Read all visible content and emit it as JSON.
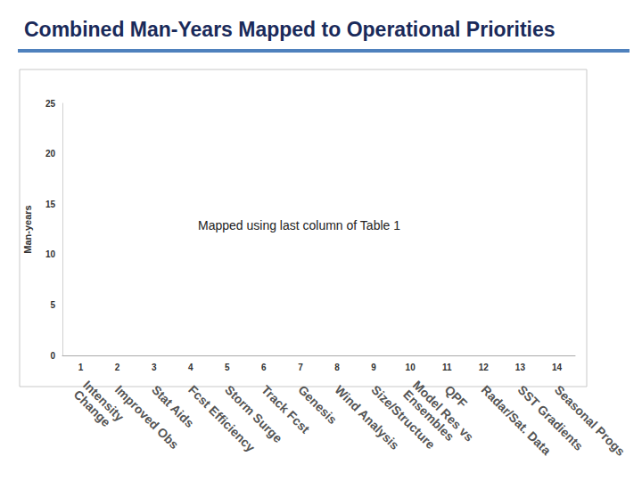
{
  "chart_data": {
    "type": "bar",
    "title": "Combined Man-Years Mapped to Operational Priorities",
    "ylabel": "Man-years",
    "categories": [
      "1",
      "2",
      "3",
      "4",
      "5",
      "6",
      "7",
      "8",
      "9",
      "10",
      "11",
      "12",
      "13",
      "14"
    ],
    "values": [
      null,
      null,
      null,
      null,
      null,
      null,
      null,
      null,
      null,
      null,
      null,
      null,
      null,
      null
    ],
    "priority_labels": [
      "Intensity\nChange",
      "Improved Obs",
      "Stat Aids",
      "Fcst Efficiency",
      "Storm Surge",
      "Track Fcst",
      "Genesis",
      "Wind Analysis",
      "Size/Structure",
      "Model Res vs\nEnsembles",
      "QPF",
      "Radar/Sat. Data",
      "SST Gradients",
      "Seasonal Progs"
    ],
    "annotation": "Mapped using last column of Table 1",
    "ylim": [
      0,
      25
    ],
    "yticks": [
      0,
      5,
      10,
      15,
      20,
      25
    ],
    "grid": false
  }
}
